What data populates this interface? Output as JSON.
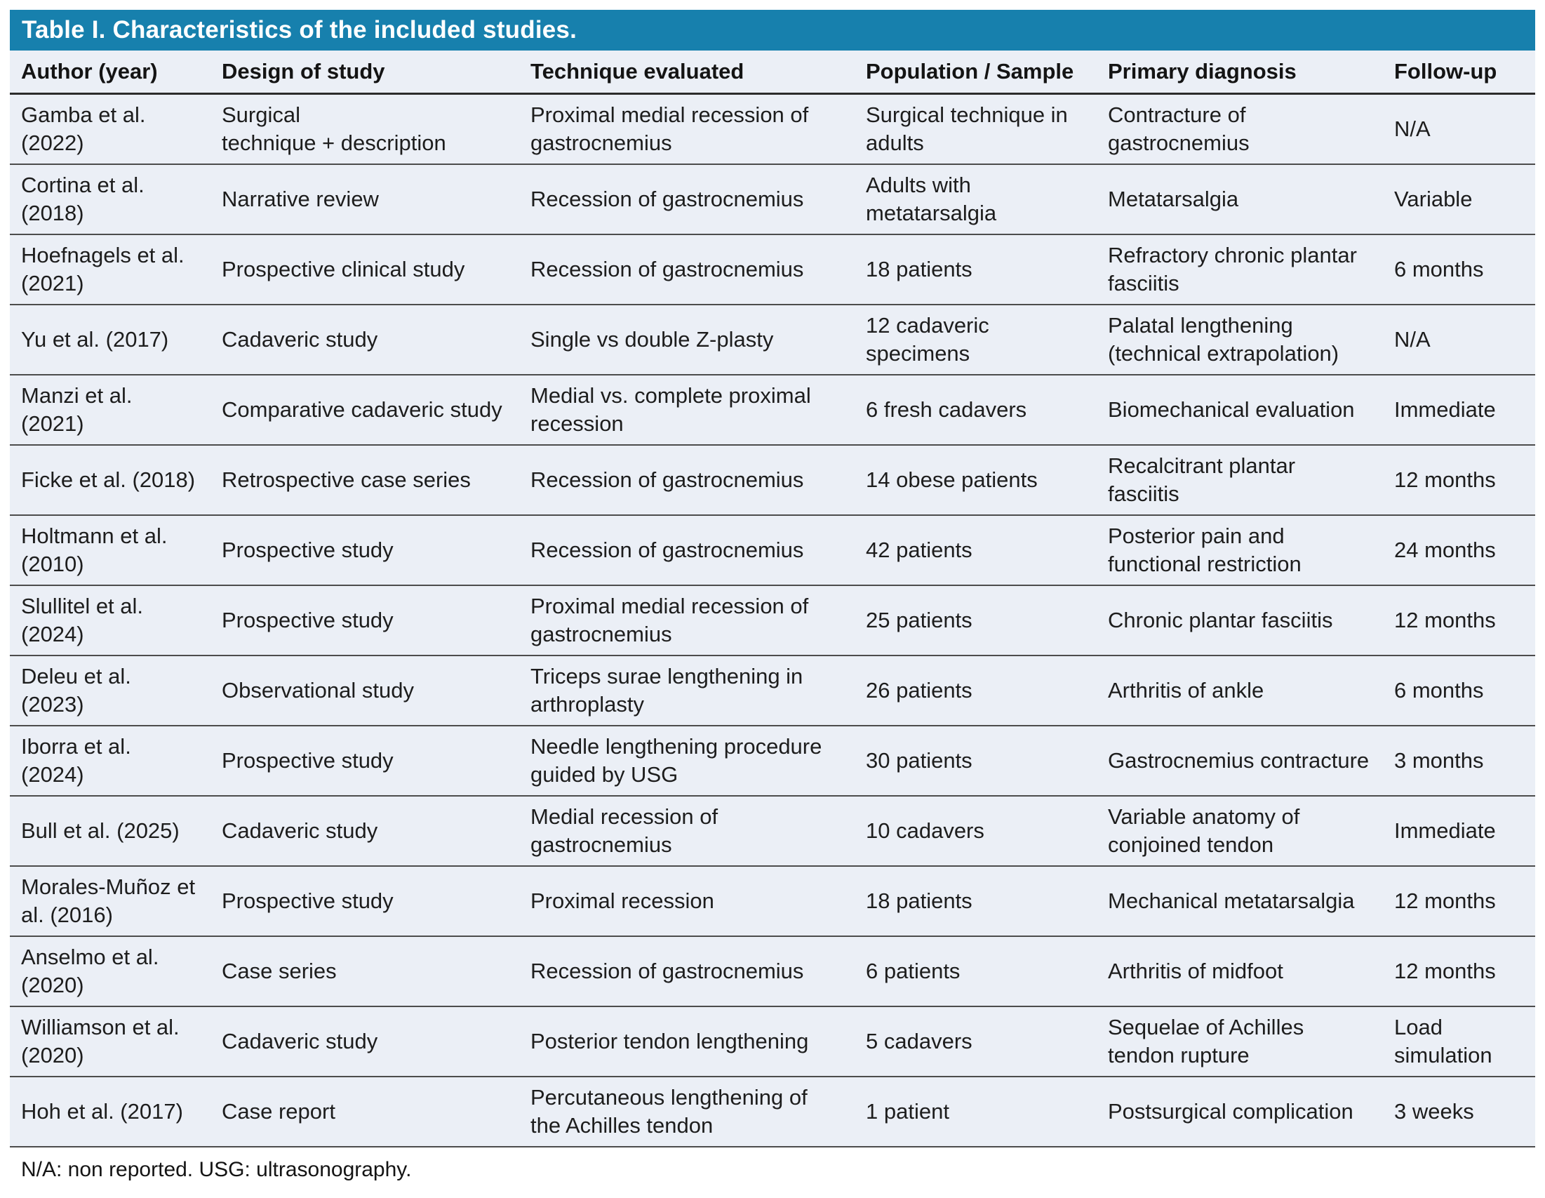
{
  "title": "Table I. Characteristics of the included studies.",
  "footnote": "N/A: non reported. USG: ultrasonography.",
  "colors": {
    "title_bar_background": "#1780ad",
    "title_text": "#ffffff",
    "table_background": "#ebeff6",
    "row_separator": "#4c4c4c",
    "body_text": "#1d1d1d"
  },
  "table": {
    "columns": [
      "Author (year)",
      "Design of study",
      "Technique evaluated",
      "Population / Sample",
      "Primary diagnosis",
      "Follow-up"
    ],
    "column_keys": [
      "author-year",
      "design-of-study",
      "technique-evaluated",
      "population-sample",
      "primary-diagnosis",
      "follow-up"
    ],
    "rows": [
      {
        "cells": [
          "Gamba et al. (2022)",
          "Surgical\ntechnique + description",
          "Proximal medial recession of gastrocnemius",
          "Surgical technique in adults",
          "Contracture of gastrocnemius",
          "N/A"
        ]
      },
      {
        "cells": [
          "Cortina et al. (2018)",
          "Narrative review",
          "Recession of gastrocnemius",
          "Adults with metatarsalgia",
          "Metatarsalgia",
          "Variable"
        ]
      },
      {
        "cells": [
          "Hoefnagels et al. (2021)",
          "Prospective clinical study",
          "Recession of gastrocnemius",
          "18 patients",
          "Refractory chronic plantar fasciitis",
          "6 months"
        ]
      },
      {
        "cells": [
          "Yu et al. (2017)",
          "Cadaveric study",
          "Single vs double Z-plasty",
          "12 cadaveric specimens",
          "Palatal lengthening (technical extrapolation)",
          "N/A"
        ]
      },
      {
        "cells": [
          "Manzi et al. (2021)",
          "Comparative cadaveric study",
          "Medial vs. complete proximal recession",
          "6 fresh cadavers",
          "Biomechanical evaluation",
          "Immediate"
        ]
      },
      {
        "cells": [
          "Ficke et al. (2018)",
          "Retrospective case series",
          "Recession of gastrocnemius",
          "14 obese patients",
          "Recalcitrant plantar fasciitis",
          "12 months"
        ]
      },
      {
        "cells": [
          "Holtmann et al. (2010)",
          "Prospective study",
          "Recession of gastrocnemius",
          "42 patients",
          "Posterior pain and functional restriction",
          "24 months"
        ]
      },
      {
        "cells": [
          "Slullitel et al. (2024)",
          "Prospective study",
          "Proximal medial recession of gastrocnemius",
          "25 patients",
          "Chronic plantar fasciitis",
          "12 months"
        ]
      },
      {
        "cells": [
          "Deleu et al. (2023)",
          "Observational study",
          "Triceps surae lengthening in arthroplasty",
          "26 patients",
          "Arthritis of ankle",
          "6 months"
        ]
      },
      {
        "cells": [
          "Iborra et al. (2024)",
          "Prospective study",
          "Needle lengthening procedure guided by USG",
          "30 patients",
          "Gastrocnemius contracture",
          "3 months"
        ]
      },
      {
        "cells": [
          "Bull et al. (2025)",
          "Cadaveric study",
          "Medial recession of gastrocnemius",
          "10 cadavers",
          "Variable anatomy of conjoined tendon",
          "Immediate"
        ]
      },
      {
        "cells": [
          "Morales-Muñoz et al. (2016)",
          "Prospective study",
          "Proximal recession",
          "18 patients",
          "Mechanical metatarsalgia",
          "12 months"
        ]
      },
      {
        "cells": [
          "Anselmo et al. (2020)",
          "Case series",
          "Recession of gastrocnemius",
          "6 patients",
          "Arthritis of midfoot",
          "12 months"
        ]
      },
      {
        "cells": [
          "Williamson et al. (2020)",
          "Cadaveric study",
          "Posterior tendon lengthening",
          "5 cadavers",
          "Sequelae of Achilles tendon rupture",
          "Load simulation"
        ]
      },
      {
        "cells": [
          "Hoh et al. (2017)",
          "Case report",
          "Percutaneous lengthening of the Achilles tendon",
          "1 patient",
          "Postsurgical complication",
          "3 weeks"
        ]
      }
    ]
  }
}
